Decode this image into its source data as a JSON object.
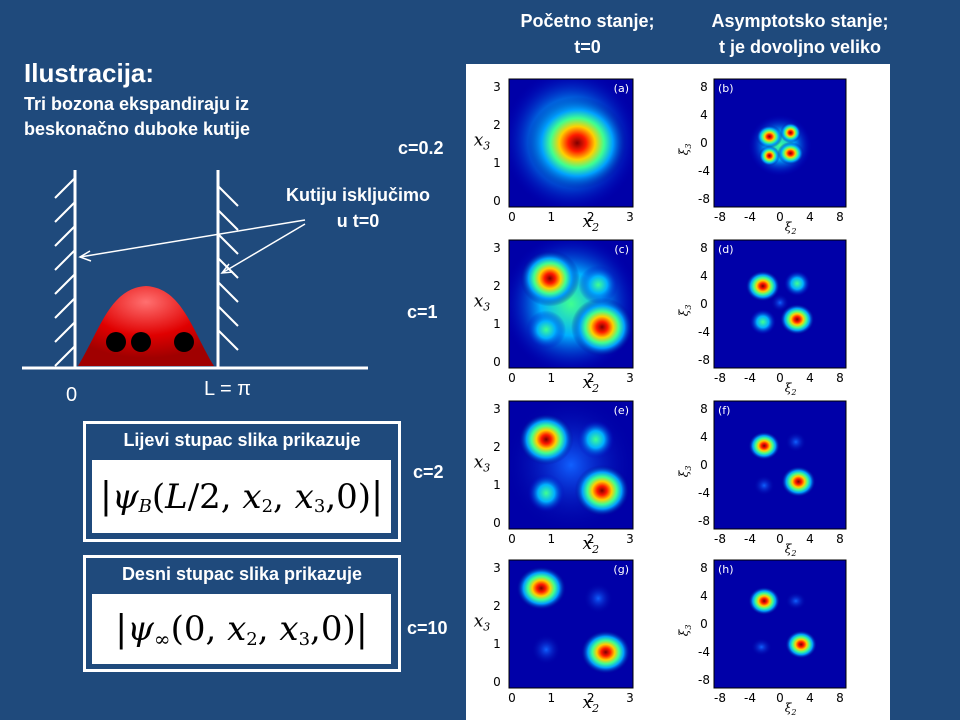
{
  "headers": {
    "left": [
      "Početno stanje;",
      "t=0"
    ],
    "right": [
      "Asymptotsko stanje;",
      "t je dovoljno veliko"
    ]
  },
  "title": "Ilustracija:",
  "subtitle": [
    "Tri bozona ekspandiraju iz",
    "beskonačno duboke kutije"
  ],
  "diagram": {
    "annotation": [
      "Kutiju isključimo",
      "u t=0"
    ],
    "x_zero": "0",
    "x_L": "L = π"
  },
  "left_box": {
    "title": "Lijevi stupac slika prikazuje",
    "formula": "|ψB(L/2, x2, x3, 0)|"
  },
  "right_box": {
    "title": "Desni stupac slika prikazuje",
    "formula": "|ψ∞(0, x2, x3, 0)|"
  },
  "rows": [
    {
      "c": "c=0.2",
      "left_tag": "(a)",
      "right_tag": "(b)"
    },
    {
      "c": "c=1",
      "left_tag": "(c)",
      "right_tag": "(d)"
    },
    {
      "c": "c=2",
      "left_tag": "(e)",
      "right_tag": "(f)"
    },
    {
      "c": "c=10",
      "left_tag": "(g)",
      "right_tag": "(h)"
    }
  ],
  "axes": {
    "left_y_ticks": [
      "3",
      "2",
      "1",
      "0"
    ],
    "left_x_ticks": [
      "0",
      "1",
      "2",
      "3"
    ],
    "left_xlabel": "x2",
    "left_ylabel": "x3",
    "right_y_ticks": [
      "8",
      "4",
      "0",
      "-4",
      "-8"
    ],
    "right_x_ticks": [
      "-8",
      "-4",
      "0",
      "4",
      "8"
    ],
    "right_xlabel": "ξ2",
    "right_ylabel": "ξ3"
  },
  "colors": {
    "background": "#1f4a7c",
    "heat_low": "#00008f",
    "heat_high": "#7f0000"
  }
}
